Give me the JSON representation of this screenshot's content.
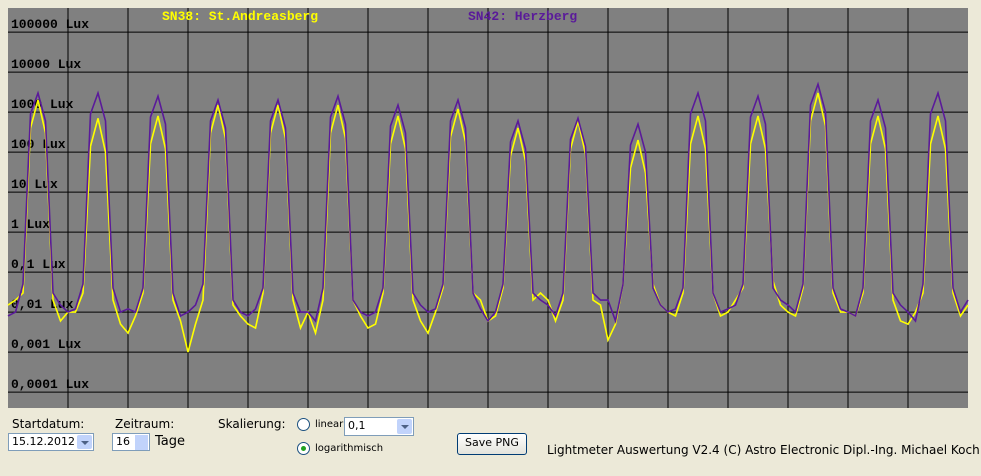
{
  "chart_data": {
    "type": "line",
    "log_scale": true,
    "grid": true,
    "background": "#808080",
    "x": [
      0,
      0.125,
      0.25,
      0.375,
      0.5,
      0.625,
      0.75,
      0.875,
      1,
      1.125,
      1.25,
      1.375,
      1.5,
      1.625,
      1.75,
      1.875,
      2,
      2.125,
      2.25,
      2.375,
      2.5,
      2.625,
      2.75,
      2.875,
      3,
      3.125,
      3.25,
      3.375,
      3.5,
      3.625,
      3.75,
      3.875,
      4,
      4.125,
      4.25,
      4.375,
      4.5,
      4.625,
      4.75,
      4.875,
      5,
      5.125,
      5.25,
      5.375,
      5.5,
      5.625,
      5.75,
      5.875,
      6,
      6.125,
      6.25,
      6.375,
      6.5,
      6.625,
      6.75,
      6.875,
      7,
      7.125,
      7.25,
      7.375,
      7.5,
      7.625,
      7.75,
      7.875,
      8,
      8.125,
      8.25,
      8.375,
      8.5,
      8.625,
      8.75,
      8.875,
      9,
      9.125,
      9.25,
      9.375,
      9.5,
      9.625,
      9.75,
      9.875,
      10,
      10.125,
      10.25,
      10.375,
      10.5,
      10.625,
      10.75,
      10.875,
      11,
      11.125,
      11.25,
      11.375,
      11.5,
      11.625,
      11.75,
      11.875,
      12,
      12.125,
      12.25,
      12.375,
      12.5,
      12.625,
      12.75,
      12.875,
      13,
      13.125,
      13.25,
      13.375,
      13.5,
      13.625,
      13.75,
      13.875,
      14,
      14.125,
      14.25,
      14.375,
      14.5,
      14.625,
      14.75,
      14.875,
      15,
      15.125,
      15.25,
      15.375,
      15.5,
      15.625,
      15.75,
      15.875,
      16
    ],
    "xlim": [
      0,
      16
    ],
    "xticks": [
      1,
      2,
      3,
      4,
      5,
      6,
      7,
      8,
      9,
      10,
      11,
      12,
      13,
      14,
      15
    ],
    "ylim": [
      4e-05,
      400000
    ],
    "yticks": [
      {
        "value": 100000,
        "label": "100000 Lux"
      },
      {
        "value": 10000,
        "label": "10000 Lux"
      },
      {
        "value": 1000,
        "label": "1000 Lux"
      },
      {
        "value": 100,
        "label": "100 Lux"
      },
      {
        "value": 10,
        "label": "10 Lux"
      },
      {
        "value": 1,
        "label": "1 Lux"
      },
      {
        "value": 0.1,
        "label": "0,1 Lux"
      },
      {
        "value": 0.01,
        "label": "0,01 Lux"
      },
      {
        "value": 0.001,
        "label": "0,001 Lux"
      },
      {
        "value": 0.0001,
        "label": "0,0001 Lux"
      }
    ],
    "series": [
      {
        "name": "SN38: St.Andreasberg",
        "color": "#ffff00",
        "values": [
          0.015,
          0.02,
          0.03,
          400,
          2000,
          300,
          0.02,
          0.006,
          0.01,
          0.01,
          0.03,
          140,
          700,
          100,
          0.02,
          0.005,
          0.003,
          0.008,
          0.03,
          160,
          800,
          120,
          0.02,
          0.006,
          0.001,
          0.005,
          0.02,
          300,
          1500,
          220,
          0.015,
          0.008,
          0.005,
          0.004,
          0.03,
          300,
          1500,
          220,
          0.02,
          0.004,
          0.01,
          0.003,
          0.02,
          300,
          1500,
          220,
          0.02,
          0.008,
          0.004,
          0.005,
          0.03,
          160,
          800,
          120,
          0.02,
          0.006,
          0.003,
          0.01,
          0.04,
          240,
          1200,
          180,
          0.03,
          0.02,
          0.006,
          0.008,
          0.04,
          80,
          400,
          60,
          0.02,
          0.03,
          0.02,
          0.006,
          0.02,
          120,
          600,
          90,
          0.02,
          0.015,
          0.002,
          0.005,
          0.05,
          40,
          200,
          30,
          0.05,
          0.015,
          0.01,
          0.008,
          0.03,
          160,
          800,
          120,
          0.03,
          0.008,
          0.01,
          0.02,
          0.04,
          160,
          800,
          120,
          0.06,
          0.015,
          0.01,
          0.008,
          0.04,
          600,
          3000,
          450,
          0.03,
          0.01,
          0.01,
          0.008,
          0.03,
          160,
          800,
          120,
          0.02,
          0.006,
          0.005,
          0.01,
          0.03,
          160,
          800,
          120,
          0.03,
          0.008,
          0.015
        ]
      },
      {
        "name": "SN42: Herzberg",
        "color": "#5a1a9a",
        "values": [
          0.008,
          0.01,
          0.05,
          900,
          3000,
          600,
          0.03,
          0.015,
          0.01,
          0.012,
          0.05,
          900,
          3000,
          600,
          0.04,
          0.01,
          0.012,
          0.01,
          0.04,
          750,
          2500,
          500,
          0.03,
          0.008,
          0.01,
          0.015,
          0.05,
          600,
          2000,
          400,
          0.02,
          0.01,
          0.008,
          0.012,
          0.04,
          600,
          2000,
          400,
          0.03,
          0.01,
          0.01,
          0.006,
          0.04,
          750,
          2500,
          500,
          0.02,
          0.01,
          0.008,
          0.01,
          0.04,
          450,
          1500,
          300,
          0.03,
          0.015,
          0.01,
          0.012,
          0.05,
          600,
          2000,
          400,
          0.03,
          0.012,
          0.006,
          0.01,
          0.05,
          180,
          600,
          120,
          0.03,
          0.02,
          0.015,
          0.008,
          0.03,
          210,
          700,
          140,
          0.03,
          0.02,
          0.02,
          0.006,
          0.05,
          150,
          500,
          100,
          0.04,
          0.015,
          0.01,
          0.012,
          0.04,
          900,
          3000,
          600,
          0.03,
          0.01,
          0.012,
          0.015,
          0.05,
          750,
          2500,
          500,
          0.04,
          0.02,
          0.015,
          0.01,
          0.05,
          1500,
          5000,
          1000,
          0.04,
          0.012,
          0.01,
          0.008,
          0.04,
          600,
          2000,
          400,
          0.03,
          0.015,
          0.01,
          0.006,
          0.05,
          900,
          3000,
          600,
          0.04,
          0.01,
          0.02
        ]
      }
    ]
  },
  "controls": {
    "start_label": "Startdatum:",
    "start_date": "15.12.2012",
    "period_label": "Zeitraum:",
    "period_value": "16",
    "period_unit": "Tage",
    "scale_label": "Skalierung:",
    "linear_label": "linear",
    "linear_value": "0,1",
    "log_label": "logarithmisch",
    "save_button": "Save PNG",
    "status": "Lightmeter Auswertung V2.4  (C) Astro Electronic Dipl.-Ing. Michael Koch"
  }
}
